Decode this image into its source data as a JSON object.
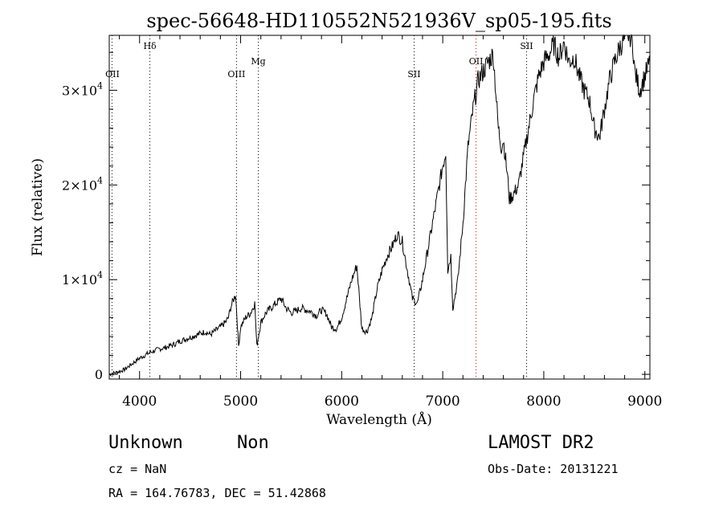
{
  "chart_data": {
    "type": "line",
    "title": "spec-56648-HD110552N521936V_sp05-195.fits",
    "xlabel": "Wavelength (Å)",
    "ylabel": "Flux (relative)",
    "xlim": [
      3700,
      9050
    ],
    "ylim": [
      -500,
      35800
    ],
    "xticks": [
      4000,
      5000,
      6000,
      7000,
      8000,
      9000
    ],
    "xtick_labels": [
      "4000",
      "5000",
      "6000",
      "7000",
      "8000",
      "9000"
    ],
    "yticks": [
      0,
      10000,
      20000,
      30000
    ],
    "ytick_labels": [
      {
        "mantissa": "0",
        "exponent": ""
      },
      {
        "mantissa": "1×10",
        "exponent": "4"
      },
      {
        "mantissa": "2×10",
        "exponent": "4"
      },
      {
        "mantissa": "3×10",
        "exponent": "4"
      }
    ],
    "grid": false,
    "line_markers": [
      {
        "label": "OII",
        "x": 3727,
        "label_level": "low",
        "color": "#000000"
      },
      {
        "label": "Hδ",
        "x": 4102,
        "label_level": "high",
        "color": "#000000"
      },
      {
        "label": "OIII",
        "x": 4959,
        "label_level": "low",
        "color": "#000000"
      },
      {
        "label": "Mg",
        "x": 5175,
        "label_level": "mid",
        "color": "#000000"
      },
      {
        "label": "SII",
        "x": 6717,
        "label_level": "low",
        "color": "#000000"
      },
      {
        "label": "OII",
        "x": 7330,
        "label_level": "mid",
        "color": "#cc0000"
      },
      {
        "label": "SII",
        "x": 7830,
        "label_level": "high",
        "color": "#000000"
      }
    ],
    "series": [
      {
        "x": [
          3700,
          3750,
          3800,
          3850,
          3900,
          3950,
          4000,
          4050,
          4100,
          4150,
          4200,
          4250,
          4300,
          4350,
          4400,
          4450,
          4500,
          4550,
          4600,
          4650,
          4700,
          4750,
          4800,
          4850,
          4880,
          4900,
          4950,
          4980,
          5000,
          5050,
          5100,
          5140,
          5160,
          5200,
          5250,
          5300,
          5350,
          5400,
          5450,
          5500,
          5550,
          5600,
          5650,
          5700,
          5750,
          5800,
          5850,
          5900,
          5950,
          6000,
          6050,
          6100,
          6150,
          6200,
          6250,
          6300,
          6350,
          6400,
          6450,
          6500,
          6550,
          6600,
          6650,
          6700,
          6750,
          6800,
          6850,
          6900,
          6950,
          7000,
          7030,
          7050,
          7080,
          7100,
          7150,
          7200,
          7250,
          7300,
          7350,
          7400,
          7450,
          7500,
          7550,
          7580,
          7600,
          7640,
          7660,
          7700,
          7750,
          7800,
          7850,
          7900,
          7950,
          8000,
          8050,
          8100,
          8150,
          8200,
          8250,
          8300,
          8350,
          8400,
          8450,
          8500,
          8550,
          8600,
          8650,
          8700,
          8750,
          8800,
          8850,
          8880,
          8900,
          8950,
          9000,
          9050
        ],
        "y": [
          0,
          150,
          300,
          500,
          900,
          1300,
          1700,
          2000,
          2300,
          2500,
          2700,
          2800,
          3000,
          3200,
          3500,
          3700,
          3900,
          4100,
          4300,
          4500,
          4200,
          4600,
          5000,
          5500,
          6000,
          7000,
          8500,
          3000,
          5000,
          6000,
          6500,
          7500,
          3000,
          5500,
          6500,
          7000,
          7500,
          8000,
          7000,
          6500,
          6700,
          7000,
          6800,
          6600,
          6200,
          6800,
          6400,
          5000,
          4800,
          6000,
          8000,
          10000,
          11500,
          4800,
          4500,
          6000,
          9000,
          11000,
          12500,
          13500,
          14800,
          14000,
          11000,
          8000,
          7500,
          10000,
          13000,
          16000,
          19000,
          22000,
          23500,
          11000,
          12500,
          7000,
          10000,
          16000,
          24000,
          28000,
          31000,
          32000,
          33000,
          33800,
          26000,
          24000,
          24800,
          21000,
          18500,
          19000,
          20000,
          23000,
          26000,
          29000,
          31500,
          33000,
          33800,
          34800,
          33500,
          35000,
          33000,
          33500,
          31500,
          30000,
          29000,
          26000,
          25000,
          28000,
          31000,
          33000,
          34500,
          35500,
          36000,
          35000,
          32000,
          30000,
          31500,
          33000
        ]
      }
    ]
  },
  "object_info": {
    "class": "Unknown",
    "subclass": "Non",
    "survey": "LAMOST DR2",
    "cz": "cz = NaN",
    "obs_date": "Obs-Date: 20131221",
    "coords": "RA = 164.76783, DEC =  51.42868"
  }
}
